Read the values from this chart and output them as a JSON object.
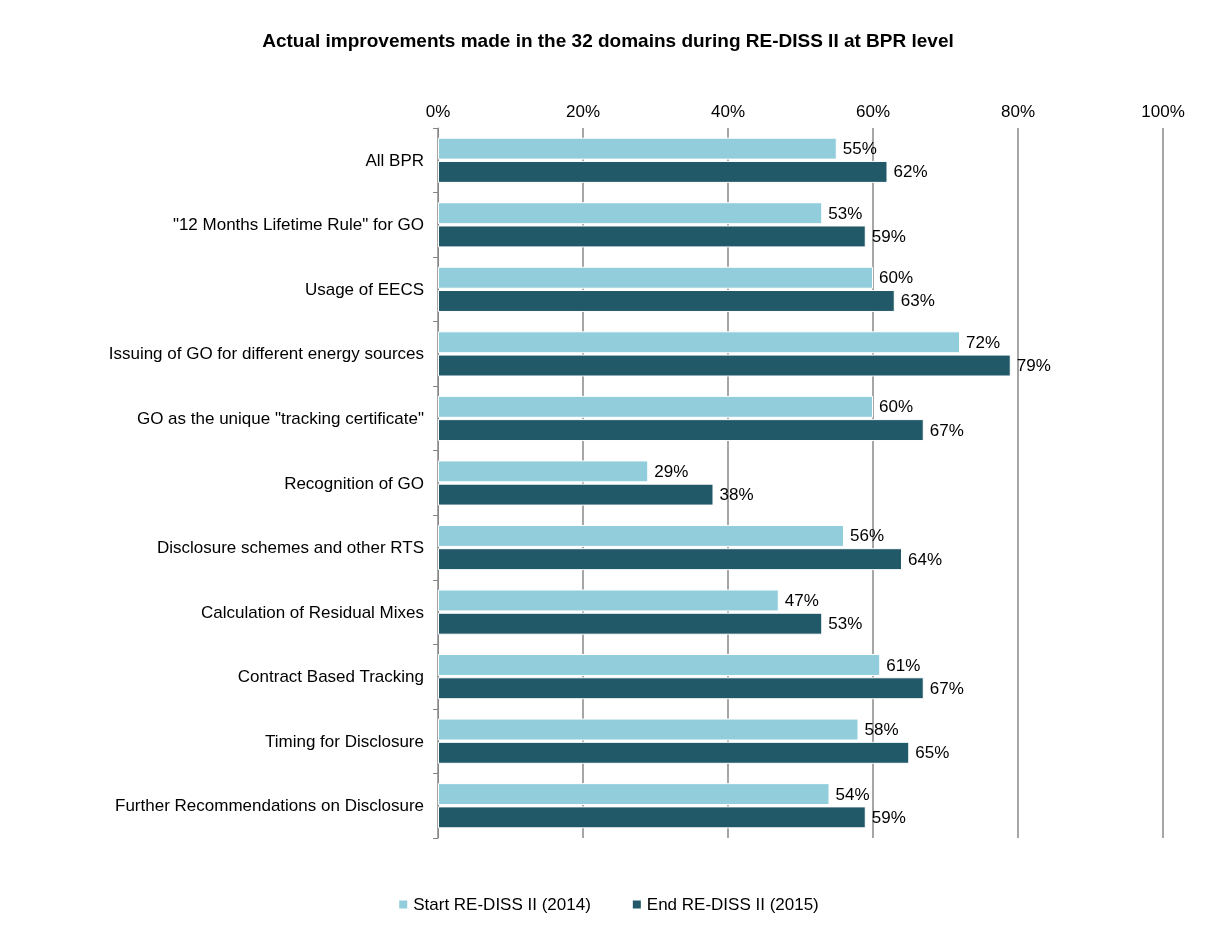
{
  "chart_data": {
    "type": "bar",
    "orientation": "horizontal",
    "title": "Actual improvements made in the 32 domains during RE-DISS II at BPR level",
    "categories": [
      "All BPR",
      "\"12 Months Lifetime Rule\" for GO",
      "Usage of EECS",
      "Issuing of GO for different energy sources",
      "GO as the unique \"tracking certificate\"",
      "Recognition of GO",
      "Disclosure schemes and other RTS",
      "Calculation of Residual Mixes",
      "Contract Based Tracking",
      "Timing for Disclosure",
      "Further Recommendations on Disclosure"
    ],
    "series": [
      {
        "name": "Start RE-DISS II (2014)",
        "color": "#92cddc",
        "values": [
          55,
          53,
          60,
          72,
          60,
          29,
          56,
          47,
          61,
          58,
          54
        ],
        "value_labels": [
          "55%",
          "53%",
          "60%",
          "72%",
          "60%",
          "29%",
          "56%",
          "47%",
          "61%",
          "58%",
          "54%"
        ]
      },
      {
        "name": "End RE-DISS II (2015)",
        "color": "#215968",
        "values": [
          62,
          59,
          63,
          79,
          67,
          38,
          64,
          53,
          67,
          65,
          59
        ],
        "value_labels": [
          "62%",
          "59%",
          "63%",
          "79%",
          "67%",
          "38%",
          "64%",
          "53%",
          "67%",
          "65%",
          "59%"
        ]
      }
    ],
    "xlim": [
      0,
      100
    ],
    "xticks": [
      {
        "value": 0,
        "label": "0%"
      },
      {
        "value": 20,
        "label": "20%"
      },
      {
        "value": 40,
        "label": "40%"
      },
      {
        "value": 60,
        "label": "60%"
      },
      {
        "value": 80,
        "label": "80%"
      },
      {
        "value": 100,
        "label": "100%"
      }
    ],
    "grid": "x",
    "legend": "bottom"
  }
}
